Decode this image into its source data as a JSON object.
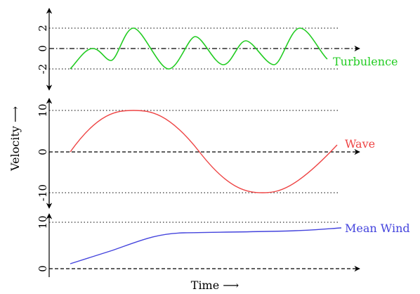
{
  "axes": {
    "y_label": "Velocity ⟶",
    "x_label": "Time ⟶"
  },
  "panels": [
    {
      "id": "turbulence",
      "label": "Turbulence",
      "color": "#22cc22",
      "ticks": [
        "2",
        "0",
        "-2"
      ],
      "curve": "turbulence"
    },
    {
      "id": "wave",
      "label": "Wave",
      "color": "#ee4444",
      "ticks": [
        "10",
        "0",
        "-10"
      ],
      "curve": "sine"
    },
    {
      "id": "mean-wind",
      "label": "Mean Wind",
      "color": "#4444dd",
      "ticks": [
        "10",
        "0"
      ],
      "curve": "rise"
    }
  ]
}
